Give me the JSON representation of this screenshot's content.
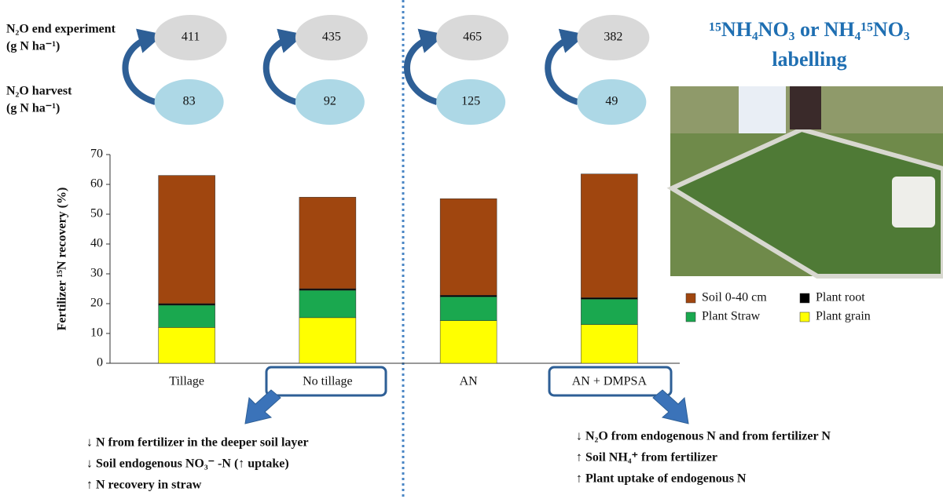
{
  "chart_data": {
    "type": "stacked_bar",
    "y_label": "Fertilizer ¹⁵N recovery (%)",
    "categories": [
      "Tillage",
      "No tillage",
      "AN",
      "AN + DMPSA"
    ],
    "series": [
      {
        "name": "Plant grain",
        "color": "#ffff00",
        "values": [
          12,
          15.3,
          14.3,
          13
        ]
      },
      {
        "name": "Plant Straw",
        "color": "#1aa84f",
        "values": [
          7.5,
          9.2,
          8,
          8.5
        ]
      },
      {
        "name": "Plant root",
        "color": "#000000",
        "values": [
          0.5,
          0.5,
          0.5,
          0.5
        ]
      },
      {
        "name": "Soil 0-40 cm",
        "color": "#a0460f",
        "values": [
          43,
          30.7,
          32.4,
          41.5
        ]
      }
    ],
    "ylim": [
      0,
      70
    ],
    "yticks": [
      0,
      10,
      20,
      30,
      40,
      50,
      60,
      70
    ],
    "grid": false
  },
  "n2o": {
    "end_label": [
      "N₂O end experiment",
      "(g N ha⁻¹)"
    ],
    "harvest_label": [
      "N₂O harvest",
      "(g N ha⁻¹)"
    ],
    "end_values": [
      411,
      435,
      465,
      382
    ],
    "harvest_values": [
      83,
      92,
      125,
      49
    ]
  },
  "labelling_title": [
    "¹⁵NH₄NO₃ or NH₄¹⁵NO₃",
    "labelling"
  ],
  "left_effects": [
    "↓ N from fertilizer in the deeper soil layer",
    "↓ Soil endogenous NO₃⁻ -N (↑ uptake)",
    "↑ N recovery in straw"
  ],
  "right_effects": [
    "↓ N₂O from endogenous N and from fertilizer N",
    "↑ Soil NH₄⁺ from fertilizer",
    "↑ Plant uptake of endogenous N"
  ]
}
